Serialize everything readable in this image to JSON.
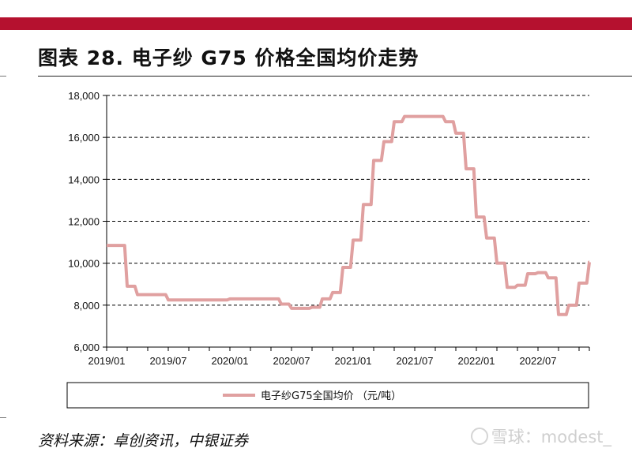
{
  "header": {
    "title": "图表 28. 电子纱 G75 价格全国均价走势"
  },
  "footer": {
    "source": "资料来源：卓创资讯，中银证券",
    "watermark": "雪球：modest_"
  },
  "colors": {
    "accent": "#b5112f",
    "series": "#e0a0a0",
    "grid": "#000000"
  },
  "chart_data": {
    "type": "line",
    "title": "",
    "xlabel": "",
    "ylabel": "",
    "ylim": [
      6000,
      18000
    ],
    "yticks": [
      "6,000",
      "8,000",
      "10,000",
      "12,000",
      "14,000",
      "16,000",
      "18,000"
    ],
    "ytick_values": [
      6000,
      8000,
      10000,
      12000,
      14000,
      16000,
      18000
    ],
    "xticks": [
      "2019/01",
      "2019/07",
      "2020/01",
      "2020/07",
      "2021/01",
      "2021/07",
      "2022/01",
      "2022/07"
    ],
    "grid": "horizontal-dashed",
    "legend_position": "bottom",
    "series": [
      {
        "name": "电子纱G75全国均价 （元/吨）",
        "x": [
          "2019/01",
          "2019/02",
          "2019/03",
          "2019/04",
          "2019/05",
          "2019/06",
          "2019/07",
          "2019/08",
          "2019/09",
          "2019/10",
          "2019/11",
          "2019/12",
          "2020/01",
          "2020/02",
          "2020/03",
          "2020/04",
          "2020/05",
          "2020/06",
          "2020/07",
          "2020/08",
          "2020/09",
          "2020/10",
          "2020/11",
          "2020/12",
          "2021/01",
          "2021/02",
          "2021/03",
          "2021/04",
          "2021/05",
          "2021/06",
          "2021/07",
          "2021/08",
          "2021/09",
          "2021/10",
          "2021/11",
          "2021/12",
          "2022/01",
          "2022/02",
          "2022/03",
          "2022/04",
          "2022/05",
          "2022/06",
          "2022/07",
          "2022/08",
          "2022/09",
          "2022/10",
          "2022/11",
          "2022/12"
        ],
        "values": [
          10850,
          10850,
          8900,
          8500,
          8500,
          8500,
          8250,
          8250,
          8250,
          8250,
          8250,
          8250,
          8300,
          8300,
          8300,
          8300,
          8300,
          8050,
          7850,
          7850,
          7900,
          8300,
          8600,
          9800,
          11100,
          12800,
          14900,
          15800,
          16750,
          17000,
          17000,
          17000,
          17000,
          16750,
          16200,
          14500,
          12200,
          11200,
          10000,
          8850,
          8950,
          9500,
          9550,
          9300,
          7550,
          8000,
          9050,
          10050
        ]
      }
    ]
  }
}
